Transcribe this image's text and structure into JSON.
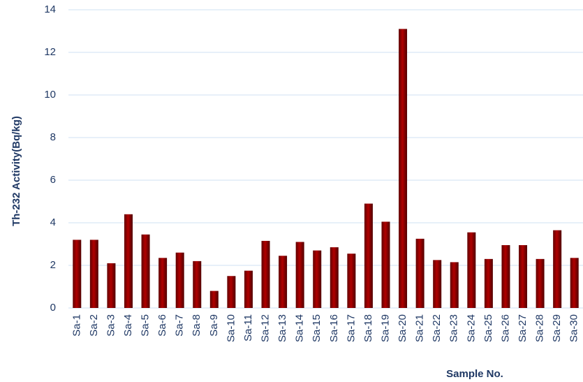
{
  "chart_data": {
    "type": "bar",
    "y_label": "Th-232 Activity(Bq/kg)",
    "x_label": "Sample No.",
    "categories": [
      "Sa-1",
      "Sa-2",
      "Sa-3",
      "Sa-4",
      "Sa-5",
      "Sa-6",
      "Sa-7",
      "Sa-8",
      "Sa-9",
      "Sa-10",
      "Sa-11",
      "Sa-12",
      "Sa-13",
      "Sa-14",
      "Sa-15",
      "Sa-16",
      "Sa-17",
      "Sa-18",
      "Sa-19",
      "Sa-20",
      "Sa-21",
      "Sa-22",
      "Sa-23",
      "Sa-24",
      "Sa-25",
      "Sa-26",
      "Sa-27",
      "Sa-28",
      "Sa-29",
      "Sa-30"
    ],
    "values": [
      3.2,
      3.2,
      2.1,
      4.4,
      3.45,
      2.35,
      2.6,
      2.2,
      0.8,
      1.5,
      1.75,
      3.15,
      2.45,
      3.1,
      2.7,
      2.85,
      2.55,
      4.9,
      4.05,
      13.1,
      3.25,
      2.25,
      2.15,
      3.55,
      2.3,
      2.95,
      2.95,
      2.3,
      3.65,
      2.35
    ],
    "color": "#b00000",
    "ylim": [
      0,
      14
    ],
    "yticks": [
      0,
      2,
      4,
      6,
      8,
      10,
      12,
      14
    ],
    "grid": true
  }
}
